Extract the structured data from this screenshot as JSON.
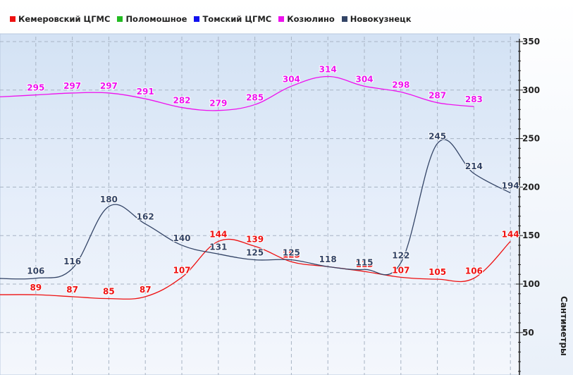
{
  "chart_data": {
    "type": "line",
    "ylabel": "Сантиметры",
    "ylim": [
      0,
      350
    ],
    "yticks": [
      50,
      100,
      150,
      200,
      250,
      300,
      350
    ],
    "grid": true,
    "legend_position": "top",
    "series": [
      {
        "name": "Кемеровский ЦГМС",
        "color": "#ee1111",
        "values": [
          89,
          87,
          85,
          87,
          107,
          144,
          139,
          123,
          118,
          113,
          107,
          105,
          106,
          144
        ],
        "x": [
          1,
          2,
          3,
          4,
          5,
          6,
          7,
          8,
          9,
          10,
          11,
          12,
          13,
          14
        ]
      },
      {
        "name": "Поломошное",
        "color": "#22bb22",
        "values": [],
        "x": []
      },
      {
        "name": "Томский ЦГМС",
        "color": "#1111ee",
        "values": [],
        "x": []
      },
      {
        "name": "Козюлино",
        "color": "#ee11ee",
        "values": [
          293,
          295,
          297,
          297,
          291,
          282,
          279,
          285,
          304,
          314,
          304,
          298,
          287,
          283
        ],
        "x": [
          0,
          1,
          2,
          3,
          4,
          5,
          6,
          7,
          8,
          9,
          10,
          11,
          12,
          13
        ]
      },
      {
        "name": "Новокузнецк",
        "color": "#334466",
        "values": [
          106,
          116,
          180,
          162,
          140,
          131,
          125,
          125,
          118,
          115,
          122,
          245,
          214,
          194
        ],
        "x": [
          1,
          2,
          3,
          4,
          5,
          6,
          7,
          8,
          9,
          10,
          11,
          12,
          13,
          14
        ]
      }
    ]
  }
}
